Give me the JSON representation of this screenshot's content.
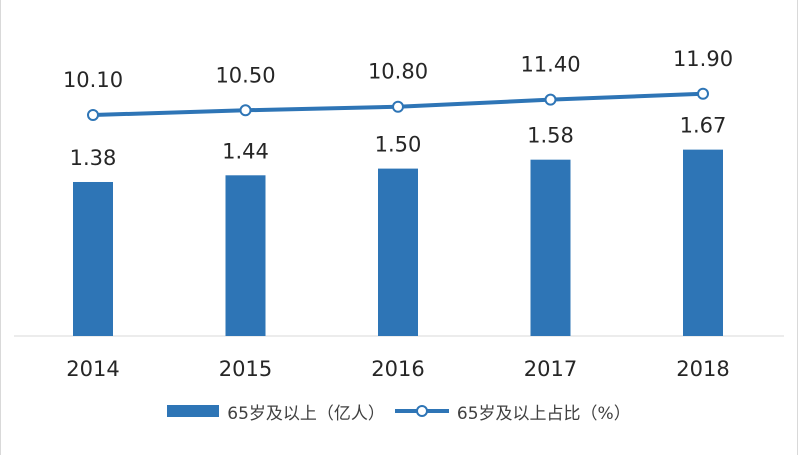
{
  "chart_data": {
    "type": "bar",
    "categories": [
      "2014",
      "2015",
      "2016",
      "2017",
      "2018"
    ],
    "series": [
      {
        "name": "65岁及以上（亿人）",
        "type": "bar",
        "values": [
          1.38,
          1.44,
          1.5,
          1.58,
          1.67
        ],
        "labels": [
          "1.38",
          "1.44",
          "1.50",
          "1.58",
          "1.67"
        ],
        "color": "#2e75b6"
      },
      {
        "name": "65岁及以上占比（%）",
        "type": "line",
        "values": [
          10.1,
          10.5,
          10.8,
          11.4,
          11.9
        ],
        "labels": [
          "10.10",
          "10.50",
          "10.80",
          "11.40",
          "11.90"
        ],
        "color": "#2e75b6",
        "marker": "circle-hollow"
      }
    ],
    "title": "",
    "xlabel": "",
    "ylabel": "",
    "grid": false,
    "legend_position": "bottom",
    "colors": {
      "axis": "#d9d9d9",
      "text": "#262626"
    }
  }
}
